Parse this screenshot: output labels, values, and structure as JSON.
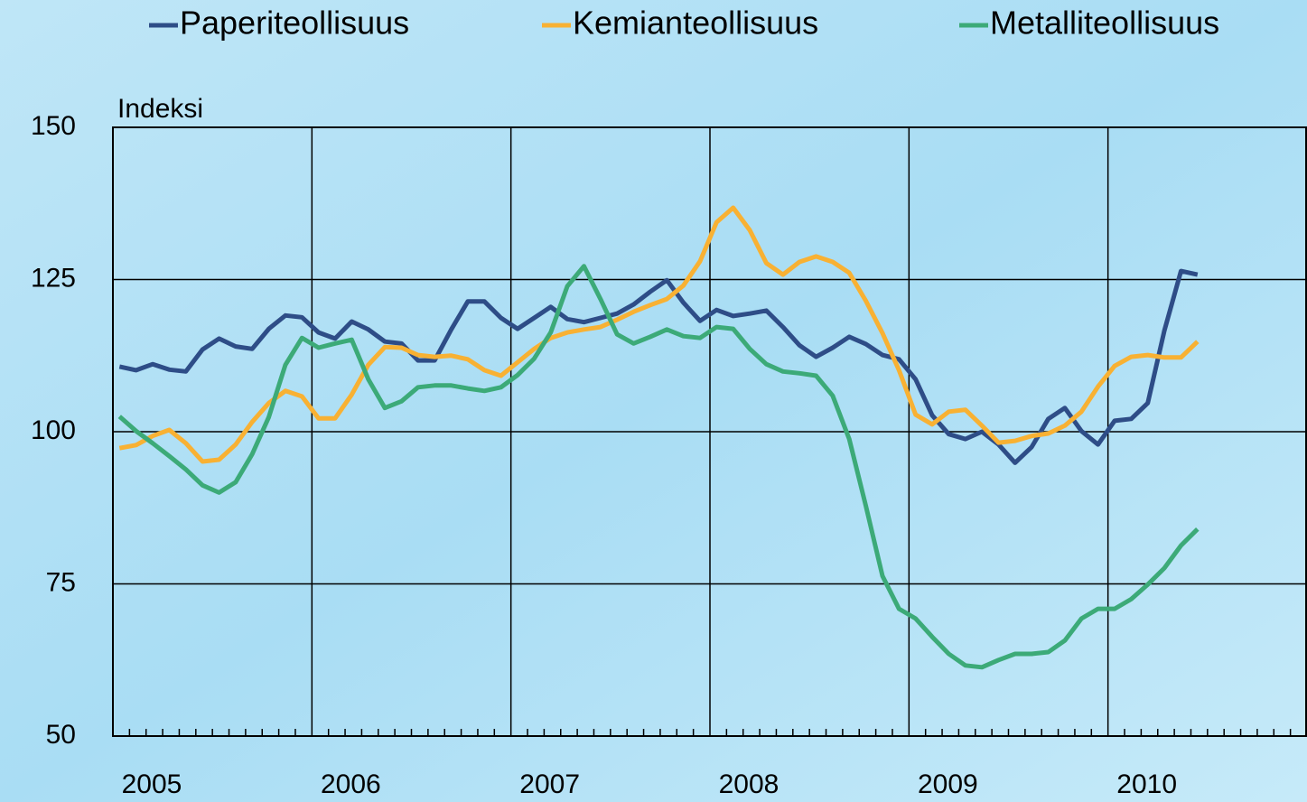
{
  "chart_data": {
    "type": "line",
    "y_axis_label": "Indeksi",
    "categories": [
      "2005",
      null,
      null,
      null,
      null,
      null,
      null,
      null,
      null,
      null,
      null,
      null,
      "2006",
      null,
      null,
      null,
      null,
      null,
      null,
      null,
      null,
      null,
      null,
      null,
      "2007",
      null,
      null,
      null,
      null,
      null,
      null,
      null,
      null,
      null,
      null,
      null,
      "2008",
      null,
      null,
      null,
      null,
      null,
      null,
      null,
      null,
      null,
      null,
      null,
      "2009",
      null,
      null,
      null,
      null,
      null,
      null,
      null,
      null,
      null,
      null,
      null,
      "2010",
      null,
      null,
      null,
      null,
      null,
      null,
      null,
      null,
      null,
      null,
      null
    ],
    "series": [
      {
        "name": "Paperiteollisuus",
        "color": "#2e4d87",
        "values": [
          110.7,
          110.1,
          111.1,
          110.2,
          109.9,
          113.5,
          115.3,
          114,
          113.6,
          116.9,
          119.1,
          118.8,
          116.3,
          115.3,
          118.1,
          116.8,
          114.8,
          114.5,
          111.7,
          111.7,
          116.8,
          121.4,
          121.4,
          118.7,
          116.9,
          118.7,
          120.5,
          118.5,
          118,
          118.7,
          119.4,
          120.9,
          123,
          124.9,
          121.2,
          118.2,
          120,
          119,
          119.4,
          119.9,
          117.2,
          114.2,
          112.3,
          113.8,
          115.6,
          114.4,
          112.6,
          111.9,
          108.6,
          102.7,
          99.6,
          98.8,
          100,
          97.9,
          94.9,
          97.5,
          102.1,
          103.9,
          100.1,
          97.9,
          101.8,
          102.1,
          104.7,
          116.6,
          126.4,
          125.8,
          null,
          null,
          null,
          null,
          null,
          null
        ]
      },
      {
        "name": "Kemianteollisuus",
        "color": "#f8b133",
        "values": [
          97.3,
          97.8,
          99.3,
          100.3,
          98.1,
          95.1,
          95.4,
          97.9,
          101.6,
          104.7,
          106.7,
          105.8,
          102.2,
          102.2,
          106.1,
          111,
          113.9,
          113.8,
          112.6,
          112.3,
          112.5,
          111.9,
          110.1,
          109.2,
          111.4,
          113.6,
          115.4,
          116.3,
          116.8,
          117.2,
          118.4,
          119.7,
          120.8,
          121.8,
          124,
          128,
          134.4,
          136.8,
          133.1,
          127.7,
          125.8,
          127.9,
          128.8,
          127.9,
          126.1,
          121.5,
          116.2,
          110.1,
          102.8,
          101.2,
          103.3,
          103.6,
          101,
          98.2,
          98.5,
          99.3,
          99.7,
          101,
          103.3,
          107.4,
          110.8,
          112.3,
          112.6,
          112.2,
          112.2,
          114.8,
          null,
          null,
          null,
          null,
          null,
          null
        ]
      },
      {
        "name": "Metalliteollisuus",
        "color": "#3caa78",
        "values": [
          102.5,
          100.1,
          98.1,
          96,
          93.8,
          91.2,
          90,
          91.7,
          96.3,
          102.4,
          111,
          115.4,
          113.8,
          114.5,
          115.1,
          108.6,
          103.9,
          105,
          107.3,
          107.6,
          107.6,
          107.1,
          106.7,
          107.3,
          109.3,
          112,
          116.3,
          123.9,
          127.2,
          121.8,
          116,
          114.5,
          115.6,
          116.8,
          115.7,
          115.4,
          117.2,
          116.9,
          113.6,
          111.1,
          109.9,
          109.6,
          109.2,
          105.9,
          98.8,
          87.8,
          76.3,
          70.9,
          69.3,
          66.3,
          63.5,
          61.6,
          61.3,
          62.5,
          63.5,
          63.5,
          63.8,
          65.7,
          69.3,
          70.9,
          70.9,
          72.5,
          74.9,
          77.6,
          81.3,
          84,
          null,
          null,
          null,
          null,
          null,
          null
        ]
      }
    ],
    "ylim": [
      50,
      150
    ],
    "yticks": [
      50,
      75,
      100,
      125,
      150
    ],
    "grid": true
  }
}
